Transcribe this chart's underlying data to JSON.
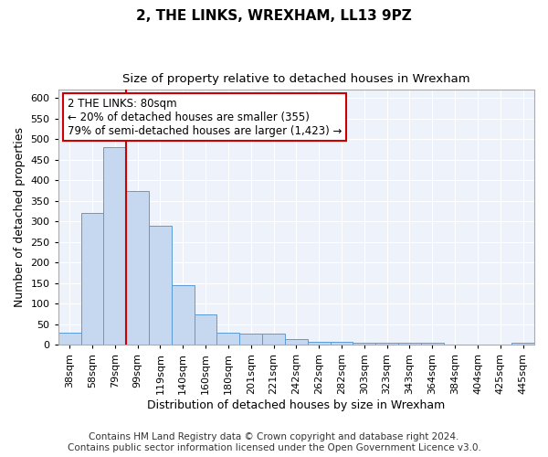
{
  "title": "2, THE LINKS, WREXHAM, LL13 9PZ",
  "subtitle": "Size of property relative to detached houses in Wrexham",
  "xlabel": "Distribution of detached houses by size in Wrexham",
  "ylabel": "Number of detached properties",
  "categories": [
    "38sqm",
    "58sqm",
    "79sqm",
    "99sqm",
    "119sqm",
    "140sqm",
    "160sqm",
    "180sqm",
    "201sqm",
    "221sqm",
    "242sqm",
    "262sqm",
    "282sqm",
    "303sqm",
    "323sqm",
    "343sqm",
    "364sqm",
    "384sqm",
    "404sqm",
    "425sqm",
    "445sqm"
  ],
  "values": [
    30,
    320,
    480,
    375,
    290,
    145,
    75,
    30,
    28,
    28,
    15,
    8,
    7,
    5,
    5,
    5,
    5,
    0,
    0,
    0,
    5
  ],
  "bar_color": "#c5d8f0",
  "bar_edge_color": "#5b9bd5",
  "highlight_index": 2,
  "highlight_line_color": "#cc0000",
  "ylim": [
    0,
    620
  ],
  "yticks": [
    0,
    50,
    100,
    150,
    200,
    250,
    300,
    350,
    400,
    450,
    500,
    550,
    600
  ],
  "annotation_text": "2 THE LINKS: 80sqm\n← 20% of detached houses are smaller (355)\n79% of semi-detached houses are larger (1,423) →",
  "annotation_box_color": "#ffffff",
  "annotation_border_color": "#cc0000",
  "footer_line1": "Contains HM Land Registry data © Crown copyright and database right 2024.",
  "footer_line2": "Contains public sector information licensed under the Open Government Licence v3.0.",
  "background_color": "#eef2fb",
  "fig_background_color": "#ffffff",
  "grid_color": "#ffffff",
  "title_fontsize": 11,
  "subtitle_fontsize": 9.5,
  "axis_label_fontsize": 9,
  "tick_fontsize": 8,
  "annotation_fontsize": 8.5,
  "footer_fontsize": 7.5
}
